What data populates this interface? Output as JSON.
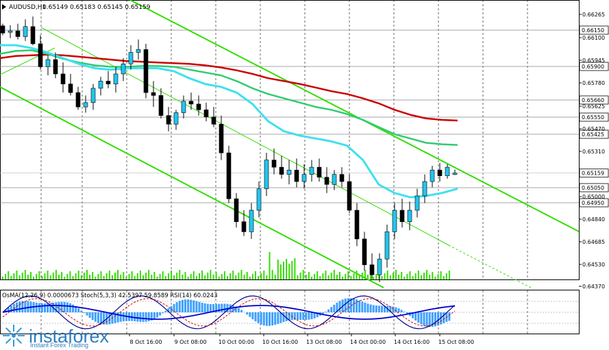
{
  "header": {
    "symbol_label": "AUDUSD,H1",
    "quote_line": "0.65149 0.65183 0.65145 0.65159"
  },
  "indicator_header": "OsMA(12,26,9) 0.0000673  Stoch(5,3,3) 42.5397 59.8589  RSI(14) 60.0243",
  "watermark": {
    "brand": "instaforex",
    "tagline": "Instant Forex Trading"
  },
  "colors": {
    "background": "#ffffff",
    "bull_candle": "#22c5ee",
    "bear_candle": "#000000",
    "wick": "#000000",
    "ema_slow": "#cc0000",
    "ema_mid": "#2ecc71",
    "ema_fast": "#3fe0f0",
    "channel": "#33dd00",
    "grid": "#000000",
    "volume": "#33dd00",
    "current_price_label": "#ffffff"
  },
  "chart_data": {
    "type": "candlestick",
    "symbol": "AUDUSD",
    "timeframe": "H1",
    "ohlc_last": {
      "open": 0.65149,
      "high": 0.65183,
      "low": 0.65145,
      "close": 0.65159
    },
    "price_ticks": [
      "0.66265",
      "0.66100",
      "0.65945",
      "0.65780",
      "0.65625",
      "0.65470",
      "0.65310",
      "0.65000",
      "0.64840",
      "0.64685",
      "0.64530",
      "0.64370"
    ],
    "level_labels": [
      "0.66150",
      "0.65900",
      "0.65660",
      "0.65550",
      "0.65425",
      "0.65050",
      "0.64950"
    ],
    "current_price": "0.65159",
    "ylim": [
      0.6437,
      0.66265
    ],
    "time_labels": [
      "8 Oct 16:00",
      "9 Oct 08:00",
      "10 Oct 00:00",
      "10 Oct 16:00",
      "13 Oct 08:00",
      "14 Oct 00:00",
      "14 Oct 16:00",
      "15 Oct 08:00"
    ],
    "series": [
      {
        "name": "EMA slow",
        "role": "ema_slow",
        "y": [
          0.6596,
          0.65975,
          0.6598,
          0.65985,
          0.6598,
          0.6597,
          0.6596,
          0.6595,
          0.6594,
          0.65935,
          0.6593,
          0.65925,
          0.6592,
          0.6591,
          0.65895,
          0.65875,
          0.6585,
          0.6582,
          0.658,
          0.6578,
          0.65755,
          0.6573,
          0.6571,
          0.6568,
          0.65645,
          0.656,
          0.65565,
          0.6554,
          0.6553,
          0.65525
        ]
      },
      {
        "name": "EMA mid",
        "role": "ema_mid",
        "y": [
          0.6599,
          0.6601,
          0.66015,
          0.6599,
          0.65955,
          0.6593,
          0.6591,
          0.659,
          0.659,
          0.65905,
          0.65905,
          0.659,
          0.6588,
          0.6586,
          0.6584,
          0.658,
          0.6575,
          0.6571,
          0.6568,
          0.6565,
          0.6562,
          0.656,
          0.6557,
          0.6553,
          0.6548,
          0.6543,
          0.654,
          0.6537,
          0.6536,
          0.65355
        ]
      },
      {
        "name": "EMA fast",
        "role": "ema_fast",
        "y": [
          0.6605,
          0.6605,
          0.6603,
          0.66,
          0.6596,
          0.6592,
          0.6589,
          0.6588,
          0.6589,
          0.6589,
          0.6589,
          0.6587,
          0.6582,
          0.6578,
          0.6576,
          0.6572,
          0.6564,
          0.6552,
          0.6545,
          0.6542,
          0.654,
          0.6538,
          0.6535,
          0.6525,
          0.6508,
          0.6502,
          0.6499,
          0.65,
          0.6502,
          0.6505
        ]
      }
    ],
    "candles": [
      [
        0.66185,
        0.662,
        0.6612,
        0.66135
      ],
      [
        0.6614,
        0.6619,
        0.661,
        0.6615
      ],
      [
        0.6615,
        0.662,
        0.6609,
        0.6611
      ],
      [
        0.6611,
        0.6623,
        0.6608,
        0.6618
      ],
      [
        0.6618,
        0.6625,
        0.6605,
        0.6606
      ],
      [
        0.6606,
        0.6612,
        0.6588,
        0.659
      ],
      [
        0.659,
        0.6598,
        0.6584,
        0.6595
      ],
      [
        0.6595,
        0.66,
        0.6582,
        0.6585
      ],
      [
        0.6585,
        0.6593,
        0.6572,
        0.6578
      ],
      [
        0.6578,
        0.6585,
        0.657,
        0.6572
      ],
      [
        0.6572,
        0.6576,
        0.656,
        0.6562
      ],
      [
        0.6562,
        0.657,
        0.6558,
        0.6565
      ],
      [
        0.6565,
        0.6578,
        0.656,
        0.6575
      ],
      [
        0.6575,
        0.6583,
        0.657,
        0.658
      ],
      [
        0.658,
        0.6587,
        0.6575,
        0.6578
      ],
      [
        0.6578,
        0.659,
        0.6572,
        0.6585
      ],
      [
        0.6585,
        0.6596,
        0.658,
        0.6592
      ],
      [
        0.6592,
        0.6605,
        0.6588,
        0.66
      ],
      [
        0.66,
        0.6609,
        0.6595,
        0.6602
      ],
      [
        0.6602,
        0.6606,
        0.6568,
        0.6572
      ],
      [
        0.6572,
        0.658,
        0.6562,
        0.657
      ],
      [
        0.657,
        0.6575,
        0.6554,
        0.6556
      ],
      [
        0.6556,
        0.6562,
        0.6545,
        0.655
      ],
      [
        0.655,
        0.656,
        0.6546,
        0.6558
      ],
      [
        0.6558,
        0.657,
        0.6554,
        0.6566
      ],
      [
        0.6566,
        0.6572,
        0.656,
        0.6564
      ],
      [
        0.6564,
        0.657,
        0.6556,
        0.656
      ],
      [
        0.656,
        0.6565,
        0.6552,
        0.6555
      ],
      [
        0.6555,
        0.6562,
        0.6548,
        0.655
      ],
      [
        0.655,
        0.6556,
        0.6525,
        0.653
      ],
      [
        0.653,
        0.6535,
        0.6495,
        0.6498
      ],
      [
        0.6498,
        0.6502,
        0.6478,
        0.6482
      ],
      [
        0.6482,
        0.649,
        0.6472,
        0.6475
      ],
      [
        0.6475,
        0.6495,
        0.647,
        0.649
      ],
      [
        0.649,
        0.651,
        0.6485,
        0.6505
      ],
      [
        0.6505,
        0.653,
        0.65,
        0.6525
      ],
      [
        0.6525,
        0.6533,
        0.6515,
        0.652
      ],
      [
        0.652,
        0.6528,
        0.6512,
        0.6515
      ],
      [
        0.6515,
        0.6525,
        0.6508,
        0.6518
      ],
      [
        0.6518,
        0.6526,
        0.6506,
        0.651
      ],
      [
        0.651,
        0.6522,
        0.6505,
        0.6515
      ],
      [
        0.6515,
        0.6525,
        0.651,
        0.652
      ],
      [
        0.652,
        0.6526,
        0.651,
        0.6513
      ],
      [
        0.6513,
        0.652,
        0.6502,
        0.6508
      ],
      [
        0.6508,
        0.6518,
        0.6504,
        0.6515
      ],
      [
        0.6515,
        0.652,
        0.6506,
        0.651
      ],
      [
        0.651,
        0.6515,
        0.6488,
        0.649
      ],
      [
        0.649,
        0.6495,
        0.6465,
        0.647
      ],
      [
        0.647,
        0.6475,
        0.6448,
        0.6452
      ],
      [
        0.6452,
        0.646,
        0.6442,
        0.6445
      ],
      [
        0.6445,
        0.646,
        0.644,
        0.6456
      ],
      [
        0.6456,
        0.648,
        0.645,
        0.6475
      ],
      [
        0.6475,
        0.6495,
        0.647,
        0.649
      ],
      [
        0.649,
        0.6498,
        0.6478,
        0.6482
      ],
      [
        0.6482,
        0.6496,
        0.6476,
        0.649
      ],
      [
        0.649,
        0.6505,
        0.6485,
        0.65
      ],
      [
        0.65,
        0.6515,
        0.6495,
        0.651
      ],
      [
        0.651,
        0.6521,
        0.6506,
        0.6518
      ],
      [
        0.6518,
        0.6523,
        0.651,
        0.6514
      ],
      [
        0.6514,
        0.6522,
        0.6512,
        0.652
      ],
      [
        0.65149,
        0.65183,
        0.65145,
        0.65159
      ]
    ]
  }
}
